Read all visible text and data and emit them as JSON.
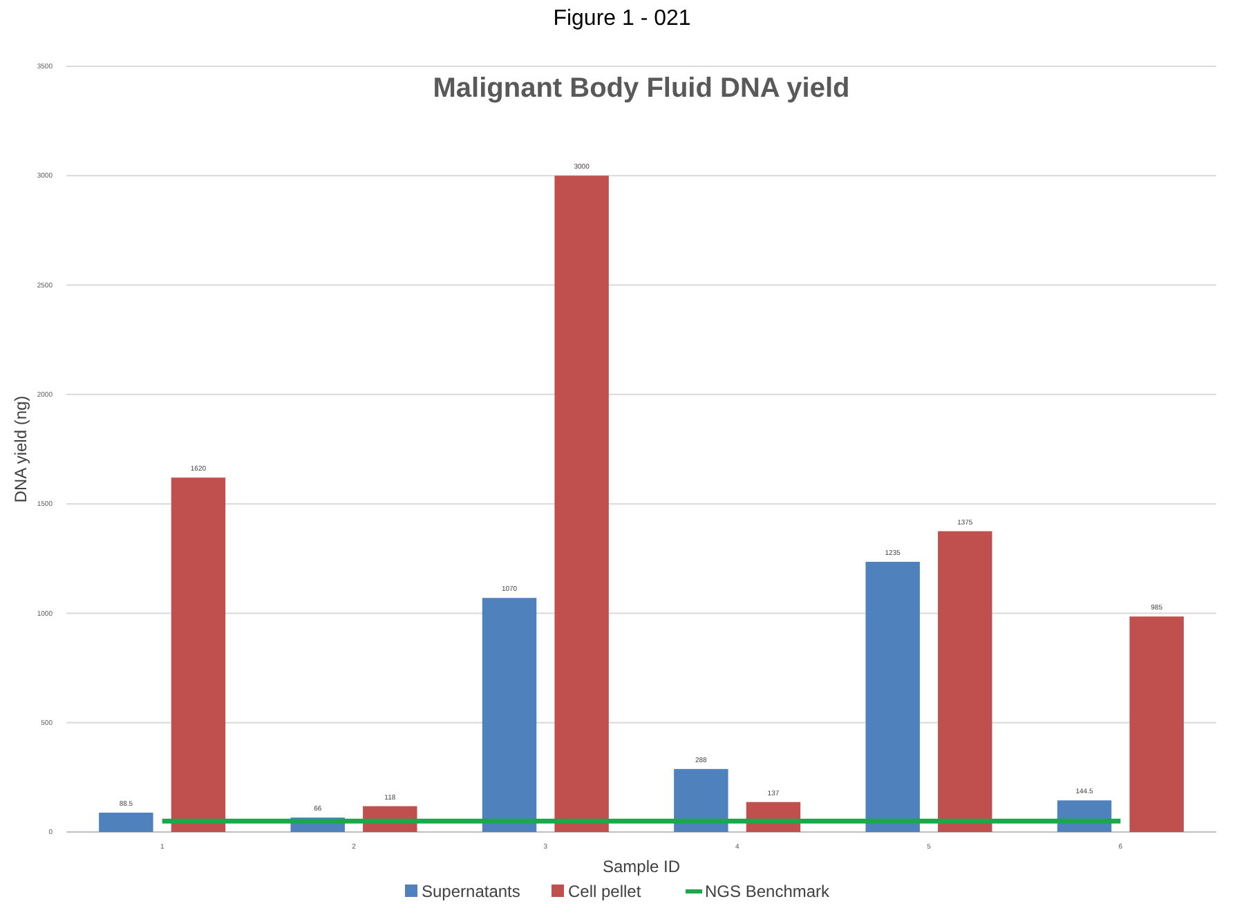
{
  "chart_data": {
    "type": "bar",
    "title": "Malignant Body Fluid DNA yield",
    "xlabel": "Sample ID",
    "ylabel": "DNA yield (ng)",
    "annotations": [
      "Figure 1 - 021"
    ],
    "categories": [
      "1",
      "2",
      "3",
      "4",
      "5",
      "6"
    ],
    "series": [
      {
        "name": "Supernatants",
        "color": "#4f81bd",
        "values": [
          88.5,
          66,
          1070,
          288,
          1235,
          144.5
        ],
        "value_labels": [
          "88.5",
          "66",
          "1070",
          "288",
          "1235",
          "144.5"
        ]
      },
      {
        "name": "Cell pellet",
        "color": "#c0504d",
        "values": [
          1620,
          118,
          3000,
          137,
          1375,
          985
        ],
        "value_labels": [
          "1620",
          "118",
          "3000",
          "137",
          "1375",
          "985"
        ]
      },
      {
        "name": "NGS Benchmark",
        "type": "line",
        "color": "#1aa84a",
        "values": [
          50,
          50,
          50,
          50,
          50,
          50
        ]
      }
    ],
    "ylim": [
      0,
      3500
    ],
    "yticks": [
      0,
      500,
      1000,
      1500,
      2000,
      2500,
      3000,
      3500
    ],
    "grid": "y",
    "legend": "bottom"
  }
}
